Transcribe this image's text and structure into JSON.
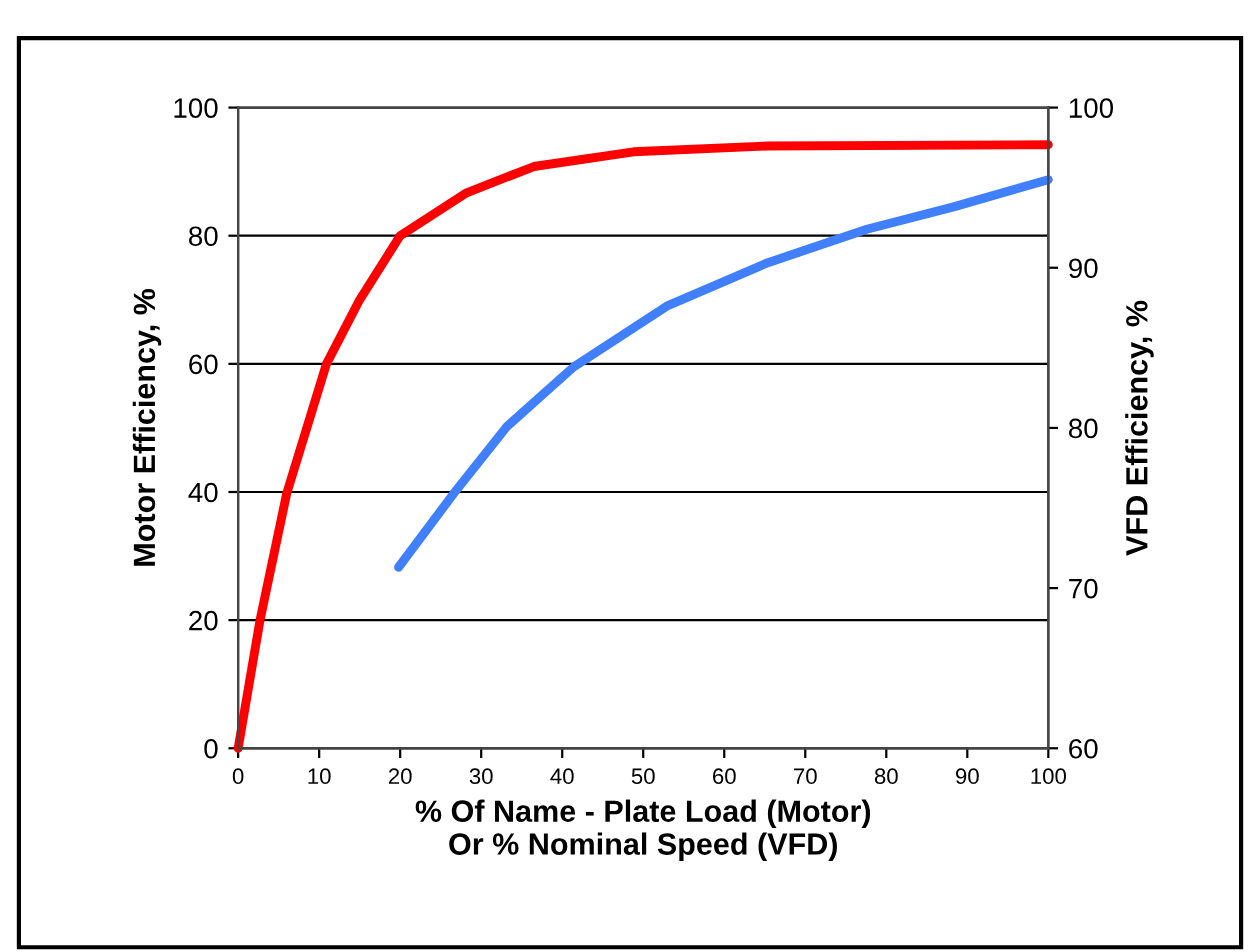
{
  "chart_data": {
    "type": "line",
    "xlabel": "% Of Name - Plate Load (Motor)\nOr % Nominal Speed (VFD)",
    "ylabel": "Motor Efficiency, %",
    "y2label": "VFD Efficiency, %",
    "xlim": [
      0,
      100
    ],
    "xticks": [
      0,
      10,
      20,
      30,
      40,
      50,
      60,
      70,
      80,
      90,
      100
    ],
    "ylim": [
      0,
      100
    ],
    "yticks": [
      0,
      20,
      40,
      60,
      80,
      100
    ],
    "y2lim": [
      60,
      100
    ],
    "y2ticks": [
      60,
      70,
      80,
      90,
      100
    ],
    "grid": "y",
    "legend": false,
    "marker": "none",
    "line_style": "solid",
    "series": [
      {
        "color": "#ff0000",
        "x": [
          0,
          2.7,
          6,
          10.9,
          15,
          20,
          28.2,
          36.5,
          48.8,
          65.3,
          100
        ],
        "values": [
          0,
          20,
          39.8,
          60,
          70,
          80,
          86.7,
          90.8,
          93.1,
          94,
          94.2
        ]
      },
      {
        "color": "#4080ff",
        "axis": "y2",
        "x": [
          19.8,
          26.6,
          33.2,
          41.4,
          52.9,
          65.3,
          77.6,
          88.3,
          100
        ],
        "values": [
          71.3,
          75.9,
          80.1,
          83.8,
          87.6,
          90.3,
          92.4,
          93.8,
          95.5
        ]
      }
    ]
  }
}
